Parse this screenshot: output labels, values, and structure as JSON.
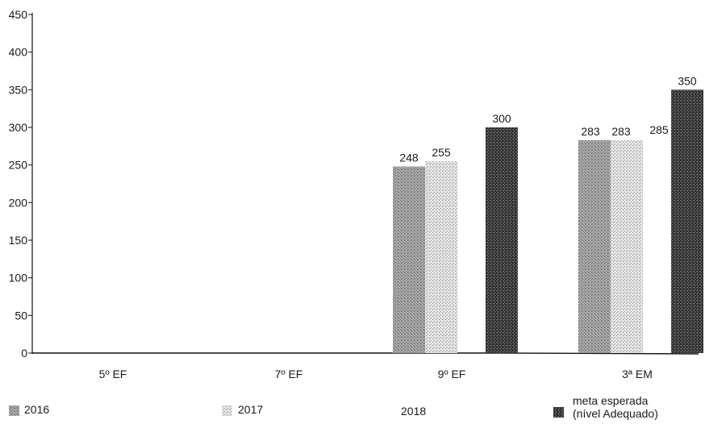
{
  "chart_data": {
    "type": "bar",
    "categories": [
      "5º EF",
      "7º EF",
      "9º EF",
      "3ª EM"
    ],
    "series": [
      {
        "name": "2016",
        "values": [
          null,
          null,
          248,
          283
        ],
        "labels": [
          "",
          "",
          "248",
          "283"
        ],
        "pattern": "medium-gray-stipple"
      },
      {
        "name": "2017",
        "values": [
          null,
          null,
          255,
          283
        ],
        "labels": [
          "",
          "",
          "255",
          "283"
        ],
        "pattern": "light-gray-stipple"
      },
      {
        "name": "2018",
        "values": [
          null,
          null,
          null,
          285
        ],
        "labels": [
          "",
          "",
          "",
          "285"
        ],
        "pattern": "none"
      },
      {
        "name": "meta esperada (nível Adequado)",
        "name_lines": [
          "meta esperada",
          "(nível Adequado)"
        ],
        "values": [
          null,
          null,
          300,
          350
        ],
        "labels": [
          "",
          "",
          "300",
          "350"
        ],
        "pattern": "dark-stipple"
      }
    ],
    "yticks": [
      "0",
      "50",
      "100",
      "150",
      "200",
      "250",
      "300",
      "350",
      "400",
      "450"
    ],
    "ylim": [
      0,
      450
    ],
    "grid": false,
    "legend_position": "bottom",
    "colors": {
      "series_2016": "#8a8a8a",
      "series_2017": "#cfcfcf",
      "series_meta": "#3a3a3a",
      "axis": "#111111"
    }
  }
}
